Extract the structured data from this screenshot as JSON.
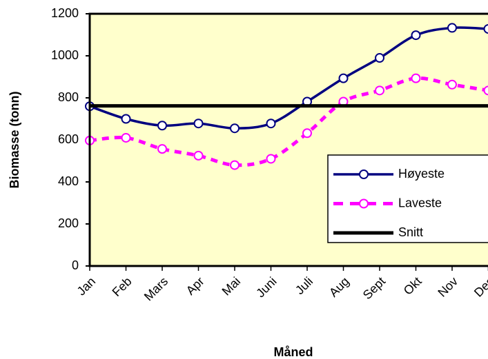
{
  "chart_data": {
    "type": "line",
    "x_label": "Måned",
    "y_label": "Biomasse (tonn)",
    "categories": [
      "Jan",
      "Feb",
      "Mars",
      "Apr",
      "Mai",
      "Juni",
      "Juli",
      "Aug",
      "Sept",
      "Okt",
      "Nov",
      "Des"
    ],
    "series": [
      {
        "name": "Høyeste",
        "color": "#000080",
        "style": "solid-marker",
        "values": [
          760,
          700,
          668,
          678,
          655,
          678,
          782,
          893,
          990,
          1098,
          1133,
          1128
        ]
      },
      {
        "name": "Laveste",
        "color": "#ff00ff",
        "style": "dashed-marker",
        "values": [
          597,
          610,
          557,
          525,
          480,
          510,
          632,
          782,
          835,
          893,
          863,
          835
        ]
      },
      {
        "name": "Snitt",
        "color": "#000000",
        "style": "thick",
        "values": [
          762,
          762,
          762,
          762,
          762,
          762,
          762,
          762,
          762,
          762,
          762,
          762
        ]
      }
    ],
    "ylim": [
      0,
      1200
    ],
    "yticks": [
      0,
      200,
      400,
      600,
      800,
      1000,
      1200
    ],
    "plot_background": "#ffffcc",
    "legend": "right"
  }
}
